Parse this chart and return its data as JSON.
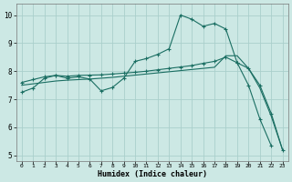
{
  "xlabel": "Humidex (Indice chaleur)",
  "xlim": [
    -0.5,
    23.5
  ],
  "ylim": [
    4.8,
    10.4
  ],
  "xticks": [
    0,
    1,
    2,
    3,
    4,
    5,
    6,
    7,
    8,
    9,
    10,
    11,
    12,
    13,
    14,
    15,
    16,
    17,
    18,
    19,
    20,
    21,
    22,
    23
  ],
  "yticks": [
    5,
    6,
    7,
    8,
    9,
    10
  ],
  "bg_color": "#cce8e4",
  "grid_color": "#aacfcc",
  "line_color": "#1a6e62",
  "line1_x": [
    0,
    1,
    2,
    3,
    4,
    5,
    6,
    7,
    8,
    9,
    10,
    11,
    12,
    13,
    14,
    15,
    16,
    17,
    18,
    19,
    20,
    21,
    22,
    23
  ],
  "line1_y": [
    7.25,
    7.4,
    7.75,
    7.85,
    7.75,
    7.8,
    7.72,
    7.3,
    7.42,
    7.75,
    8.35,
    8.45,
    8.6,
    8.8,
    10.0,
    9.85,
    9.6,
    9.7,
    9.5,
    8.3,
    7.5,
    6.3,
    5.35,
    null
  ],
  "line2_x": [
    0,
    1,
    2,
    3,
    4,
    5,
    6,
    7,
    8,
    9,
    10,
    11,
    12,
    13,
    14,
    15,
    16,
    17,
    18,
    19,
    20,
    21,
    22,
    23
  ],
  "line2_y": [
    7.6,
    7.7,
    7.8,
    7.85,
    7.82,
    7.85,
    7.86,
    7.87,
    7.9,
    7.93,
    7.96,
    8.0,
    8.05,
    8.1,
    8.15,
    8.2,
    8.28,
    8.35,
    8.5,
    8.3,
    8.1,
    7.5,
    6.5,
    5.2
  ],
  "line3_x": [
    0,
    1,
    2,
    3,
    4,
    5,
    6,
    7,
    8,
    9,
    10,
    11,
    12,
    13,
    14,
    15,
    16,
    17,
    18,
    19,
    20,
    21,
    22,
    23
  ],
  "line3_y": [
    7.5,
    7.55,
    7.6,
    7.65,
    7.68,
    7.7,
    7.72,
    7.75,
    7.78,
    7.82,
    7.86,
    7.9,
    7.94,
    7.98,
    8.02,
    8.06,
    8.1,
    8.14,
    8.55,
    8.55,
    8.1,
    7.4,
    6.4,
    5.2
  ]
}
